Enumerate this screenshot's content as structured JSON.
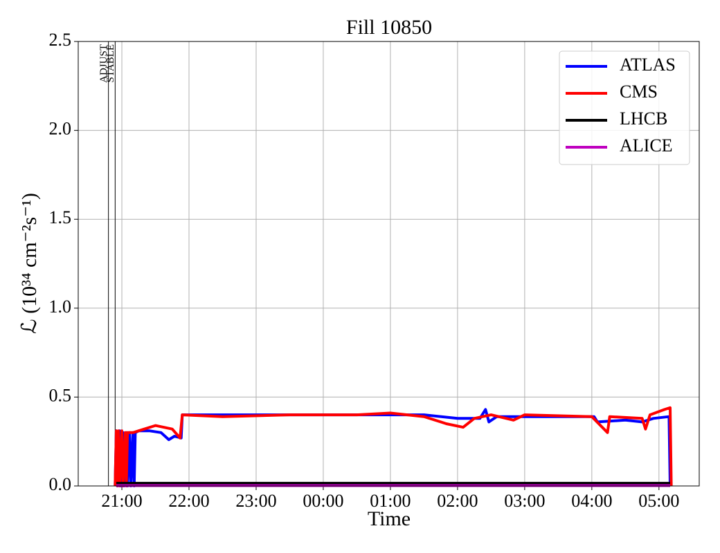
{
  "chart_data": {
    "type": "line",
    "title": "Fill 10850",
    "xlabel": "Time",
    "ylabel": "ℒ (10³⁴ cm⁻²s⁻¹)",
    "xlim": [
      "20:21",
      "05:36"
    ],
    "xticks": [
      "21:00",
      "22:00",
      "23:00",
      "00:00",
      "01:00",
      "02:00",
      "03:00",
      "04:00",
      "05:00"
    ],
    "ylim": [
      0,
      2.5
    ],
    "yticks": [
      {
        "value": 0,
        "label": "0.0"
      },
      {
        "value": 0.5,
        "label": "0.5"
      },
      {
        "value": 1,
        "label": "1.0"
      },
      {
        "value": 1.5,
        "label": "1.5"
      },
      {
        "value": 2,
        "label": "2.0"
      },
      {
        "value": 2.5,
        "label": "2.5"
      }
    ],
    "grid": true,
    "legend": "upper right",
    "annotations": [
      {
        "label": "ADJUST",
        "x": "20:48"
      },
      {
        "label": "STABLE",
        "x": "20:54"
      }
    ],
    "series": [
      {
        "name": "ATLAS",
        "color": "#0000ff",
        "x": [
          "20:54",
          "20:55",
          "20:56",
          "20:58",
          "20:59",
          "21:01",
          "21:02",
          "21:04",
          "21:05",
          "21:07",
          "21:08",
          "21:10",
          "21:11",
          "21:12",
          "21:15",
          "21:25",
          "21:35",
          "21:42",
          "21:47",
          "21:53",
          "21:54",
          "22:30",
          "23:30",
          "00:30",
          "01:30",
          "02:00",
          "02:20",
          "02:25",
          "02:28",
          "02:35",
          "03:30",
          "04:02",
          "04:05",
          "04:30",
          "04:45",
          "04:55",
          "05:09",
          "05:10"
        ],
        "values": [
          0,
          0.31,
          0,
          0.31,
          0,
          0.3,
          0,
          0.3,
          0,
          0.3,
          0,
          0.3,
          0,
          0.3,
          0.31,
          0.31,
          0.3,
          0.26,
          0.28,
          0.27,
          0.4,
          0.4,
          0.4,
          0.4,
          0.4,
          0.38,
          0.38,
          0.43,
          0.36,
          0.39,
          0.39,
          0.39,
          0.36,
          0.37,
          0.36,
          0.38,
          0.39,
          0
        ]
      },
      {
        "name": "CMS",
        "color": "#ff0000",
        "x": [
          "20:54",
          "20:55",
          "20:56",
          "20:57",
          "20:58",
          "21:00",
          "21:01",
          "21:03",
          "21:04",
          "21:05",
          "21:10",
          "21:20",
          "21:30",
          "21:45",
          "21:52",
          "21:54",
          "22:30",
          "23:30",
          "00:30",
          "01:00",
          "01:30",
          "01:45",
          "01:50",
          "02:05",
          "02:15",
          "02:30",
          "02:50",
          "03:00",
          "04:00",
          "04:14",
          "04:16",
          "04:45",
          "04:48",
          "04:52",
          "05:05",
          "05:10",
          "05:11"
        ],
        "values": [
          0,
          0.31,
          0,
          0.31,
          0,
          0.31,
          0,
          0.3,
          0,
          0.3,
          0.3,
          0.32,
          0.34,
          0.32,
          0.27,
          0.4,
          0.39,
          0.4,
          0.4,
          0.41,
          0.39,
          0.36,
          0.35,
          0.33,
          0.38,
          0.4,
          0.37,
          0.4,
          0.39,
          0.3,
          0.39,
          0.38,
          0.32,
          0.4,
          0.43,
          0.44,
          0
        ]
      },
      {
        "name": "LHCB",
        "color": "#000000",
        "x": [
          "20:55",
          "05:10"
        ],
        "values": [
          0.015,
          0.015
        ]
      },
      {
        "name": "ALICE",
        "color": "#bf00bf",
        "x": [
          "20:55",
          "05:10"
        ],
        "values": [
          0.002,
          0.002
        ]
      }
    ]
  }
}
